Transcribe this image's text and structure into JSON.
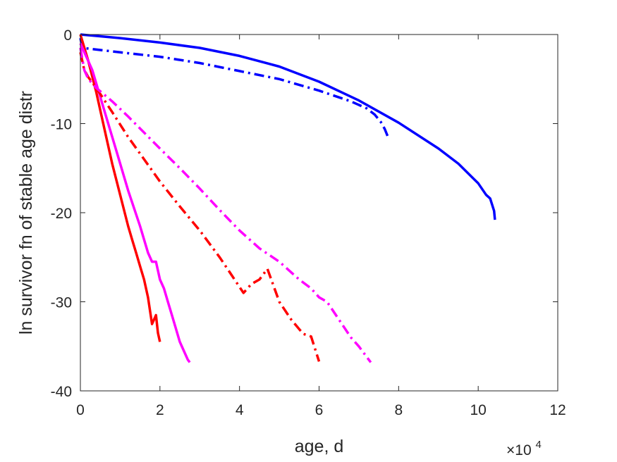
{
  "chart_data": {
    "type": "line",
    "title": "",
    "xlabel": "age, d",
    "ylabel": "ln survivor fn of stable age distr",
    "x_multiplier_label": {
      "base": "×10",
      "exponent": "4"
    },
    "xlim": [
      0,
      120000
    ],
    "ylim": [
      -40,
      0
    ],
    "xticks": [
      0,
      20000,
      40000,
      60000,
      80000,
      100000,
      120000
    ],
    "xtick_labels": [
      "0",
      "2",
      "4",
      "6",
      "8",
      "10",
      "12"
    ],
    "yticks": [
      0,
      -10,
      -20,
      -30,
      -40
    ],
    "ytick_labels": [
      "0",
      "-10",
      "-20",
      "-30",
      "-40"
    ],
    "grid": false,
    "box": true,
    "series": [
      {
        "color": "#0000ff",
        "style": "solid",
        "x": [
          0,
          10000,
          20000,
          30000,
          40000,
          50000,
          60000,
          70000,
          80000,
          90000,
          95000,
          100000,
          102000,
          103000,
          103500,
          104000,
          104200
        ],
        "y": [
          0,
          -0.4,
          -0.9,
          -1.5,
          -2.4,
          -3.6,
          -5.3,
          -7.4,
          -9.9,
          -12.8,
          -14.5,
          -16.7,
          -18.0,
          -18.4,
          -19.1,
          -19.8,
          -20.8
        ]
      },
      {
        "color": "#0000ff",
        "style": "dashdot",
        "x": [
          0,
          500,
          10000,
          20000,
          30000,
          40000,
          50000,
          60000,
          68000,
          72000,
          74000,
          75500,
          76500,
          77500
        ],
        "y": [
          -0.4,
          -1.5,
          -2.0,
          -2.5,
          -3.2,
          -4.1,
          -5.0,
          -6.3,
          -7.5,
          -8.3,
          -9.0,
          -9.8,
          -10.6,
          -11.7
        ]
      },
      {
        "color": "#ff0000",
        "style": "solid",
        "x": [
          0,
          2000,
          4000,
          6000,
          8000,
          10000,
          12000,
          13000,
          14000,
          15000,
          16000,
          17000,
          18000,
          18500,
          19000,
          19500,
          20000
        ],
        "y": [
          0,
          -3.0,
          -6.5,
          -10.5,
          -14.5,
          -18.0,
          -21.5,
          -23.0,
          -24.5,
          -26.0,
          -27.5,
          -29.5,
          -32.5,
          -32.0,
          -31.5,
          -33.5,
          -34.5
        ]
      },
      {
        "color": "#ff00ff",
        "style": "solid",
        "x": [
          0,
          3000,
          6000,
          9000,
          12000,
          15000,
          17000,
          18000,
          19000,
          20000,
          21000,
          22000,
          23000,
          24000,
          25000,
          26000,
          27000,
          27500
        ],
        "y": [
          -1.0,
          -4.0,
          -8.5,
          -13.0,
          -17.5,
          -21.5,
          -24.5,
          -25.5,
          -25.5,
          -27.5,
          -28.5,
          -30.0,
          -31.5,
          -33.0,
          -34.5,
          -35.5,
          -36.5,
          -36.8
        ]
      },
      {
        "color": "#ff0000",
        "style": "dashdot",
        "x": [
          0,
          1000,
          2000,
          4000,
          8000,
          12000,
          16000,
          20000,
          25000,
          30000,
          35000,
          38000,
          41000,
          43000,
          45000,
          47000,
          50000,
          53000,
          56000,
          58000,
          60000
        ],
        "y": [
          -2.0,
          -4.0,
          -4.8,
          -6.0,
          -8.7,
          -11.5,
          -14.0,
          -16.5,
          -19.3,
          -22.0,
          -25.0,
          -27.0,
          -29.0,
          -28.0,
          -27.5,
          -26.3,
          -30.0,
          -32.0,
          -33.6,
          -33.9,
          -36.7
        ]
      },
      {
        "color": "#ff00ff",
        "style": "dashdot",
        "x": [
          0,
          1000,
          2000,
          4000,
          8000,
          12000,
          16000,
          20000,
          25000,
          30000,
          35000,
          40000,
          45000,
          50000,
          55000,
          58000,
          60000,
          62000,
          65000,
          68000,
          70000,
          73000
        ],
        "y": [
          -1.5,
          -4.0,
          -5.0,
          -6.0,
          -7.5,
          -9.2,
          -11.0,
          -12.8,
          -15.0,
          -17.3,
          -19.7,
          -22.0,
          -24.0,
          -25.5,
          -27.5,
          -28.5,
          -29.5,
          -30.0,
          -32.0,
          -34.0,
          -35.0,
          -36.8
        ]
      }
    ]
  }
}
